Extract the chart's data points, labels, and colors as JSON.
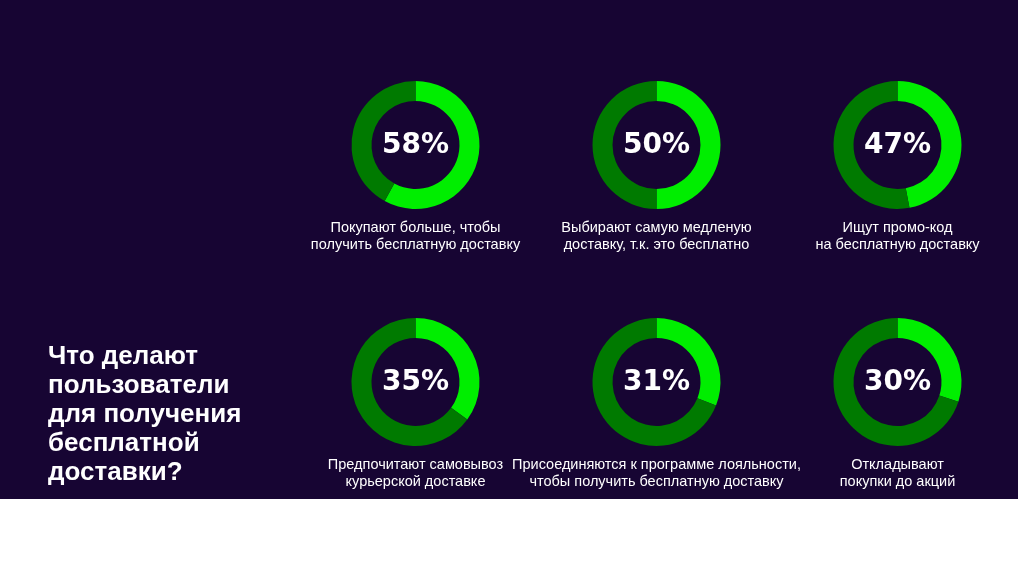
{
  "chart_data": [
    {
      "type": "other",
      "title": "Что делают\nпользователи\nдля получения\nбесплатной\nдоставки?"
    },
    {
      "type": "donut",
      "title": "Покупают больше, чтобы\nполучить бесплатную доставку",
      "categories": [
        null,
        null
      ],
      "values": [
        58,
        42
      ],
      "colors": [
        "#00ee00",
        "#007a00"
      ],
      "value_labels": [
        "58%",
        null
      ]
    },
    {
      "type": "donut",
      "title": "Выбирают самую медленую\nдоставку, т.к. это бесплатно",
      "categories": [
        null,
        null
      ],
      "values": [
        50,
        50
      ],
      "colors": [
        "#00ee00",
        "#007a00"
      ],
      "value_labels": [
        "50%",
        null
      ]
    },
    {
      "type": "donut",
      "title": "Ищут промо-код\nна бесплатную доставку",
      "categories": [
        null,
        null
      ],
      "values": [
        47,
        53
      ],
      "colors": [
        "#00ee00",
        "#007a00"
      ],
      "value_labels": [
        "47%",
        null
      ]
    },
    {
      "type": "donut",
      "title": "Предпочитают самовывоз\nкурьерской доставке",
      "categories": [
        null,
        null
      ],
      "values": [
        35,
        65
      ],
      "colors": [
        "#00ee00",
        "#007a00"
      ],
      "value_labels": [
        "35%",
        null
      ]
    },
    {
      "type": "donut",
      "title": "Присоединяются к программе лояльности,\nчтобы получить бесплатную доставку",
      "categories": [
        null,
        null
      ],
      "values": [
        31,
        69
      ],
      "colors": [
        "#00ee00",
        "#007a00"
      ],
      "value_labels": [
        "31%",
        null
      ]
    },
    {
      "type": "donut",
      "title": "Откладывают\nпокупки до акций",
      "categories": [
        null,
        null
      ],
      "values": [
        30,
        70
      ],
      "colors": [
        "#00ee00",
        "#007a00"
      ],
      "value_labels": [
        "30%",
        null
      ]
    }
  ]
}
